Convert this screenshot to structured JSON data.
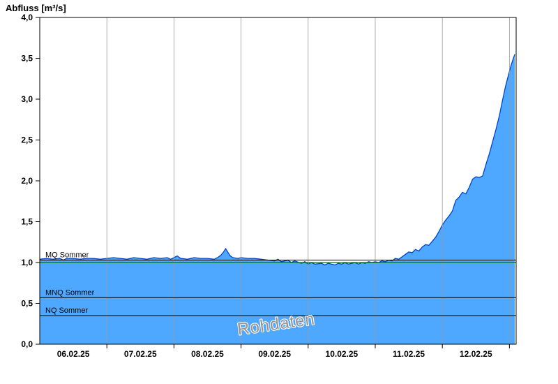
{
  "title": "Abfluss [m³/s]",
  "watermark": "Rohdaten",
  "colors": {
    "area_fill": "#4fa8ff",
    "area_stroke": "#0044cc",
    "threshold_green": "#007700",
    "reference_black": "#000000",
    "grid": "#9a9a9a",
    "axis": "#000000",
    "watermark_fill": "#949494",
    "watermark_halo": "#ffffff",
    "background": "#ffffff"
  },
  "chart_data": {
    "type": "area",
    "title": "Abfluss [m³/s]",
    "xlabel": "",
    "ylabel": "Abfluss [m³/s]",
    "ylim": [
      0,
      4
    ],
    "xlim_days": [
      0,
      7.1
    ],
    "grid": "vertical-only",
    "x_tick_labels": [
      "06.02.25",
      "07.02.25",
      "08.02.25",
      "09.02.25",
      "10.02.25",
      "11.02.25",
      "12.02.25"
    ],
    "x_tick_positions_days": [
      0.5,
      1.5,
      2.5,
      3.5,
      4.5,
      5.5,
      6.5
    ],
    "x_gridline_positions_days": [
      1,
      2,
      3,
      4,
      5,
      6,
      7
    ],
    "y_ticks": [
      0,
      0.5,
      1,
      1.5,
      2,
      2.5,
      3,
      3.5,
      4
    ],
    "y_tick_labels": [
      "0,0",
      "0,5",
      "1,0",
      "1,5",
      "2,0",
      "2,5",
      "3,0",
      "3,5",
      "4,0"
    ],
    "threshold_line": {
      "value": 1.0,
      "color": "#007700"
    },
    "reference_lines": [
      {
        "label": "MQ Sommer",
        "value": 1.03,
        "color": "#000000"
      },
      {
        "label": "MNQ Sommer",
        "value": 0.57,
        "color": "#000000"
      },
      {
        "label": "NQ Sommer",
        "value": 0.35,
        "color": "#000000"
      }
    ],
    "series": [
      {
        "name": "Rohdaten",
        "points": [
          [
            0.0,
            1.04
          ],
          [
            0.1,
            1.05
          ],
          [
            0.2,
            1.04
          ],
          [
            0.3,
            1.05
          ],
          [
            0.35,
            1.03
          ],
          [
            0.4,
            1.05
          ],
          [
            0.5,
            1.05
          ],
          [
            0.6,
            1.04
          ],
          [
            0.7,
            1.05
          ],
          [
            0.8,
            1.05
          ],
          [
            0.9,
            1.04
          ],
          [
            1.0,
            1.05
          ],
          [
            1.1,
            1.06
          ],
          [
            1.2,
            1.05
          ],
          [
            1.3,
            1.04
          ],
          [
            1.4,
            1.06
          ],
          [
            1.5,
            1.05
          ],
          [
            1.6,
            1.04
          ],
          [
            1.7,
            1.06
          ],
          [
            1.8,
            1.05
          ],
          [
            1.9,
            1.06
          ],
          [
            1.95,
            1.04
          ],
          [
            2.0,
            1.06
          ],
          [
            2.05,
            1.08
          ],
          [
            2.1,
            1.05
          ],
          [
            2.2,
            1.04
          ],
          [
            2.3,
            1.06
          ],
          [
            2.4,
            1.05
          ],
          [
            2.5,
            1.05
          ],
          [
            2.6,
            1.04
          ],
          [
            2.65,
            1.06
          ],
          [
            2.7,
            1.09
          ],
          [
            2.74,
            1.13
          ],
          [
            2.77,
            1.17
          ],
          [
            2.8,
            1.13
          ],
          [
            2.84,
            1.08
          ],
          [
            2.88,
            1.06
          ],
          [
            2.95,
            1.05
          ],
          [
            3.0,
            1.06
          ],
          [
            3.1,
            1.05
          ],
          [
            3.2,
            1.05
          ],
          [
            3.3,
            1.04
          ],
          [
            3.4,
            1.03
          ],
          [
            3.5,
            1.02
          ],
          [
            3.55,
            1.04
          ],
          [
            3.6,
            1.01
          ],
          [
            3.7,
            1.03
          ],
          [
            3.75,
            1.0
          ],
          [
            3.8,
            1.02
          ],
          [
            3.9,
            0.99
          ],
          [
            3.95,
            1.01
          ],
          [
            4.0,
            0.98
          ],
          [
            4.05,
            1.0
          ],
          [
            4.1,
            0.98
          ],
          [
            4.2,
            0.99
          ],
          [
            4.25,
            0.97
          ],
          [
            4.3,
            0.99
          ],
          [
            4.4,
            0.97
          ],
          [
            4.45,
            0.99
          ],
          [
            4.5,
            0.98
          ],
          [
            4.55,
            1.0
          ],
          [
            4.6,
            0.98
          ],
          [
            4.7,
            1.0
          ],
          [
            4.75,
            0.98
          ],
          [
            4.8,
            1.0
          ],
          [
            4.85,
            0.99
          ],
          [
            4.9,
            1.01
          ],
          [
            4.95,
            1.0
          ],
          [
            5.0,
            1.01
          ],
          [
            5.05,
            1.0
          ],
          [
            5.1,
            1.02
          ],
          [
            5.15,
            1.01
          ],
          [
            5.2,
            1.03
          ],
          [
            5.25,
            1.02
          ],
          [
            5.3,
            1.05
          ],
          [
            5.35,
            1.04
          ],
          [
            5.4,
            1.07
          ],
          [
            5.45,
            1.1
          ],
          [
            5.5,
            1.13
          ],
          [
            5.55,
            1.12
          ],
          [
            5.6,
            1.16
          ],
          [
            5.65,
            1.14
          ],
          [
            5.7,
            1.19
          ],
          [
            5.75,
            1.22
          ],
          [
            5.8,
            1.21
          ],
          [
            5.85,
            1.26
          ],
          [
            5.9,
            1.31
          ],
          [
            5.95,
            1.38
          ],
          [
            6.0,
            1.46
          ],
          [
            6.05,
            1.52
          ],
          [
            6.1,
            1.57
          ],
          [
            6.15,
            1.63
          ],
          [
            6.2,
            1.76
          ],
          [
            6.25,
            1.8
          ],
          [
            6.3,
            1.86
          ],
          [
            6.35,
            1.84
          ],
          [
            6.4,
            1.92
          ],
          [
            6.45,
            2.02
          ],
          [
            6.5,
            2.05
          ],
          [
            6.55,
            2.04
          ],
          [
            6.6,
            2.06
          ],
          [
            6.65,
            2.2
          ],
          [
            6.7,
            2.33
          ],
          [
            6.75,
            2.48
          ],
          [
            6.8,
            2.63
          ],
          [
            6.85,
            2.8
          ],
          [
            6.9,
            3.0
          ],
          [
            6.94,
            3.15
          ],
          [
            6.98,
            3.28
          ],
          [
            7.02,
            3.4
          ],
          [
            7.05,
            3.48
          ],
          [
            7.08,
            3.55
          ]
        ]
      }
    ],
    "watermark": "Rohdaten"
  }
}
